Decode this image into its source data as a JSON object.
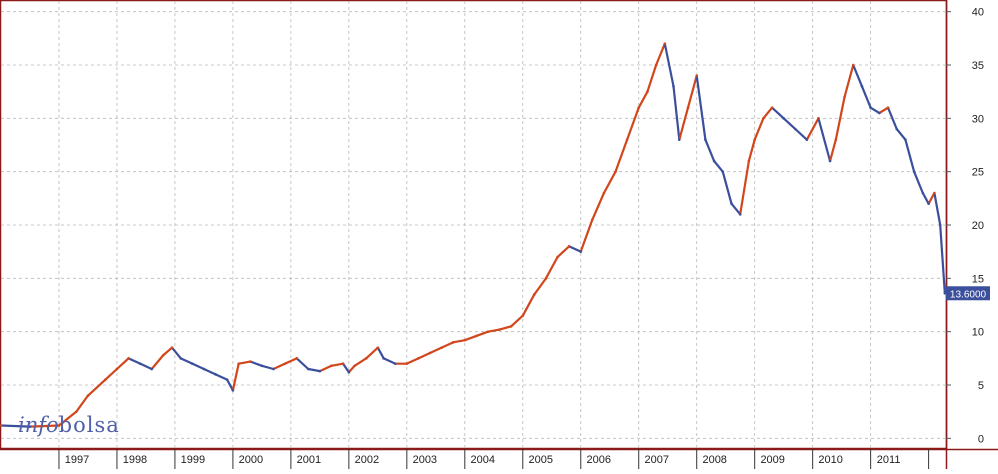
{
  "watermark": {
    "part1": "info",
    "part2": "bolsa"
  },
  "last_price_label": "13.6000",
  "colors": {
    "frame": "#8b1a1a",
    "grid": "#b8b8b8",
    "up": "#d2461c",
    "down": "#3b4f9c",
    "label_bg": "#3b4f9c",
    "label_text": "#ffffff",
    "watermark": "#5060a8"
  },
  "chart_data": {
    "type": "line",
    "title": "",
    "xlabel": "",
    "ylabel": "",
    "ylim": [
      -1,
      41
    ],
    "y_ticks": [
      0,
      5,
      10,
      15,
      20,
      25,
      30,
      35,
      40
    ],
    "x_tick_labels": [
      "1997",
      "1998",
      "1999",
      "2000",
      "2001",
      "2002",
      "2003",
      "2004",
      "2005",
      "2006",
      "2007",
      "2008",
      "2009",
      "2010",
      "2011"
    ],
    "grid": true,
    "last_value": 13.6,
    "series": [
      {
        "x": [
          1996.0,
          1996.5,
          1997.0,
          1997.3,
          1997.5,
          1997.8,
          1998.0,
          1998.2,
          1998.4,
          1998.6,
          1998.8,
          1998.95,
          1999.1,
          1999.3,
          1999.5,
          1999.7,
          1999.9,
          2000.0,
          2000.1,
          2000.3,
          2000.5,
          2000.7,
          2000.9,
          2001.1,
          2001.3,
          2001.5,
          2001.7,
          2001.9,
          2002.0,
          2002.1,
          2002.3,
          2002.5,
          2002.6,
          2002.8,
          2003.0,
          2003.2,
          2003.4,
          2003.6,
          2003.8,
          2004.0,
          2004.2,
          2004.4,
          2004.6,
          2004.8,
          2005.0,
          2005.2,
          2005.4,
          2005.6,
          2005.8,
          2006.0,
          2006.2,
          2006.4,
          2006.6,
          2006.8,
          2007.0,
          2007.15,
          2007.3,
          2007.45,
          2007.6,
          2007.7,
          2007.85,
          2008.0,
          2008.15,
          2008.3,
          2008.45,
          2008.6,
          2008.75,
          2008.9,
          2009.0,
          2009.15,
          2009.3,
          2009.5,
          2009.7,
          2009.9,
          2010.1,
          2010.3,
          2010.4,
          2010.55,
          2010.7,
          2010.85,
          2011.0,
          2011.15,
          2011.3,
          2011.45,
          2011.6,
          2011.75,
          2011.9,
          2012.0,
          2012.1,
          2012.2,
          2012.28
        ],
        "values": [
          1.2,
          1.1,
          1.2,
          2.5,
          4.0,
          5.5,
          6.5,
          7.5,
          7.0,
          6.5,
          7.8,
          8.5,
          7.5,
          7.0,
          6.5,
          6.0,
          5.5,
          4.5,
          7.0,
          7.2,
          6.8,
          6.5,
          7.0,
          7.5,
          6.5,
          6.3,
          6.8,
          7.0,
          6.2,
          6.8,
          7.5,
          8.5,
          7.5,
          7.0,
          7.0,
          7.5,
          8.0,
          8.5,
          9.0,
          9.2,
          9.6,
          10.0,
          10.2,
          10.5,
          11.5,
          13.5,
          15.0,
          17.0,
          18.0,
          17.5,
          20.5,
          23.0,
          25.0,
          28.0,
          31.0,
          32.5,
          35.0,
          37.0,
          33.0,
          28.0,
          31.0,
          34.0,
          28.0,
          26.0,
          25.0,
          22.0,
          21.0,
          26.0,
          28.0,
          30.0,
          31.0,
          30.0,
          29.0,
          28.0,
          30.0,
          26.0,
          28.0,
          32.0,
          35.0,
          33.0,
          31.0,
          30.5,
          31.0,
          29.0,
          28.0,
          25.0,
          23.0,
          22.0,
          23.0,
          20.0,
          13.6
        ]
      }
    ]
  }
}
